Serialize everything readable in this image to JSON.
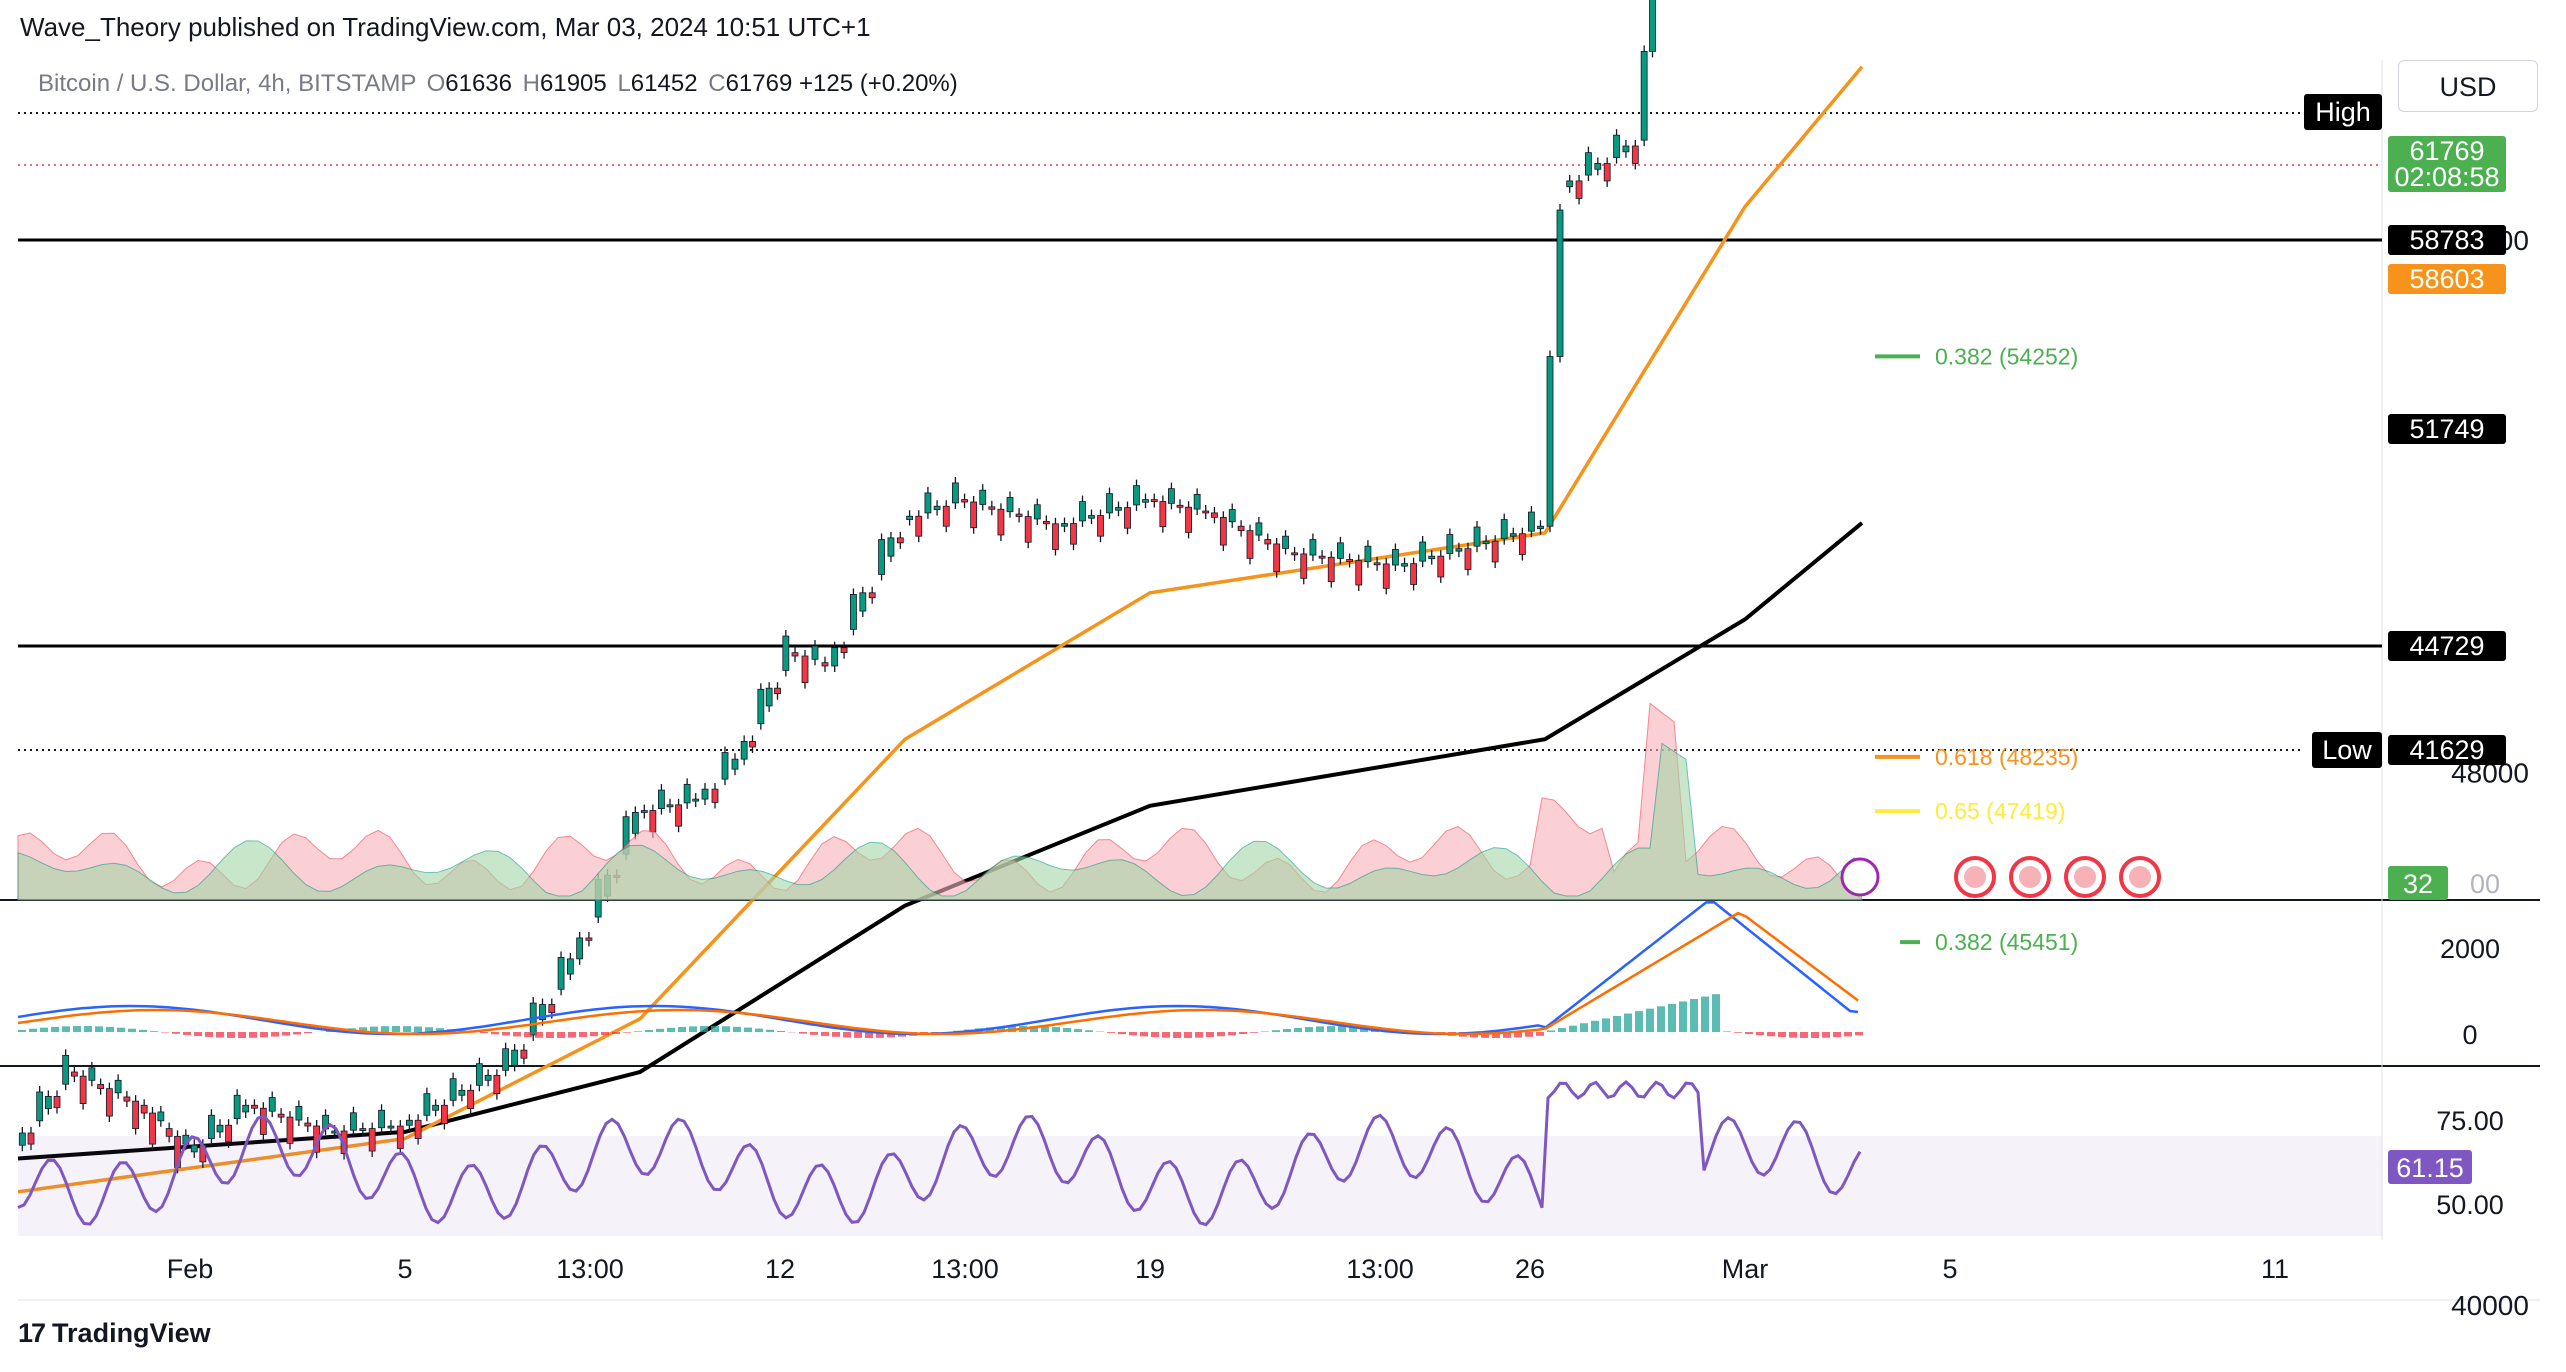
{
  "header": {
    "publisher_line": "Wave_Theory published on TradingView.com, Mar 03, 2024 10:51 UTC+1",
    "symbol_title": "Bitcoin / U.S. Dollar, 4h, BITSTAMP",
    "ohlc": {
      "o_label": "O",
      "o": "61636",
      "h_label": "H",
      "h": "61905",
      "l_label": "L",
      "l": "61452",
      "c_label": "C",
      "c": "61769",
      "change": "+125 (+0.20%)"
    },
    "currency": "USD"
  },
  "footer": {
    "brand": "TradingView",
    "brand_mark": "17"
  },
  "colors": {
    "up": "#089981",
    "down": "#f23645",
    "ema50": "#f7931a",
    "ema200": "#000000",
    "fib_green": "#4caf50",
    "fib_orange": "#f7931a",
    "fib_yellow": "#ffeb3b",
    "macd": "#2962ff",
    "signal": "#ff6d00",
    "rsi": "#7e57c2",
    "price_tag": "#4caf50"
  },
  "chart_data": {
    "type": "candlestick",
    "title": "Bitcoin / U.S. Dollar, 4h, BITSTAMP",
    "y_axis_labels": [
      "56000",
      "48000",
      "40000"
    ],
    "x_axis_labels": [
      "Feb",
      "5",
      "13:00",
      "12",
      "13:00",
      "19",
      "13:00",
      "26",
      "Mar",
      "5",
      "11"
    ],
    "price_path": [
      {
        "d": "Jan 29",
        "v": 42400
      },
      {
        "d": "Jan 30",
        "v": 43500
      },
      {
        "d": "Jan 31",
        "v": 43000
      },
      {
        "d": "Feb 1",
        "v": 42300
      },
      {
        "d": "Feb 2",
        "v": 43000
      },
      {
        "d": "Feb 4",
        "v": 42600
      },
      {
        "d": "Feb 5",
        "v": 42700
      },
      {
        "d": "Feb 7",
        "v": 43600
      },
      {
        "d": "Feb 8",
        "v": 45200
      },
      {
        "d": "Feb 9",
        "v": 47400
      },
      {
        "d": "Feb 10",
        "v": 47600
      },
      {
        "d": "Feb 11",
        "v": 48200
      },
      {
        "d": "Feb 12",
        "v": 49800
      },
      {
        "d": "Feb 13",
        "v": 49600
      },
      {
        "d": "Feb 14",
        "v": 51800
      },
      {
        "d": "Feb 15",
        "v": 52100
      },
      {
        "d": "Feb 17",
        "v": 51700
      },
      {
        "d": "Feb 19",
        "v": 52100
      },
      {
        "d": "Feb 20",
        "v": 51900
      },
      {
        "d": "Feb 22",
        "v": 51300
      },
      {
        "d": "Feb 24",
        "v": 51100
      },
      {
        "d": "Feb 26",
        "v": 51700
      },
      {
        "d": "Feb 27",
        "v": 56800
      },
      {
        "d": "Feb 28",
        "v": 57500
      },
      {
        "d": "Feb 28 pm",
        "v": 61500
      },
      {
        "d": "Feb 29",
        "v": 62400
      },
      {
        "d": "Mar 1",
        "v": 61900
      },
      {
        "d": "Mar 2",
        "v": 62000
      },
      {
        "d": "Mar 3",
        "v": 61769
      }
    ],
    "ema_50_path": [
      {
        "d": "Jan 29",
        "v": 41700
      },
      {
        "d": "Feb 5",
        "v": 42500
      },
      {
        "d": "Feb 9",
        "v": 44300
      },
      {
        "d": "Feb 14",
        "v": 48500
      },
      {
        "d": "Feb 19",
        "v": 50700
      },
      {
        "d": "Feb 26",
        "v": 51600
      },
      {
        "d": "Mar 1",
        "v": 56500
      },
      {
        "d": "Mar 3",
        "v": 58603
      }
    ],
    "ema_200_path": [
      {
        "d": "Jan 29",
        "v": 42200
      },
      {
        "d": "Feb 5",
        "v": 42600
      },
      {
        "d": "Feb 9",
        "v": 43500
      },
      {
        "d": "Feb 14",
        "v": 46000
      },
      {
        "d": "Feb 19",
        "v": 47500
      },
      {
        "d": "Feb 26",
        "v": 48500
      },
      {
        "d": "Mar 1",
        "v": 50300
      },
      {
        "d": "Mar 3",
        "v": 51749
      }
    ],
    "horizontal_levels": [
      {
        "name": "high",
        "label": "High",
        "value": "—"
      },
      {
        "name": "resistance",
        "value": "58783"
      },
      {
        "name": "support",
        "value": "44729"
      },
      {
        "name": "low",
        "label": "Low",
        "value": "41629"
      }
    ],
    "price_labels": {
      "last": "61769",
      "countdown": "02:08:58",
      "ema50": "58603",
      "ema200": "51749"
    },
    "fib_levels": [
      {
        "text": "0.382 (54252)",
        "value": 54252,
        "color": "#4caf50"
      },
      {
        "text": "0.618 (48235)",
        "value": 48235,
        "color": "#f7931a"
      },
      {
        "text": "0.65 (47419)",
        "value": 47419,
        "color": "#ffeb3b"
      },
      {
        "text": "0.382 (45451)",
        "value": 45451,
        "color": "#4caf50"
      }
    ],
    "volume": {
      "last_label": "32",
      "axis_fragment": "00"
    },
    "macd": {
      "y_axis_labels": [
        "2000",
        "0"
      ]
    },
    "rsi": {
      "y_axis_labels": [
        "75.00",
        "50.00"
      ],
      "last": "61.15"
    }
  }
}
